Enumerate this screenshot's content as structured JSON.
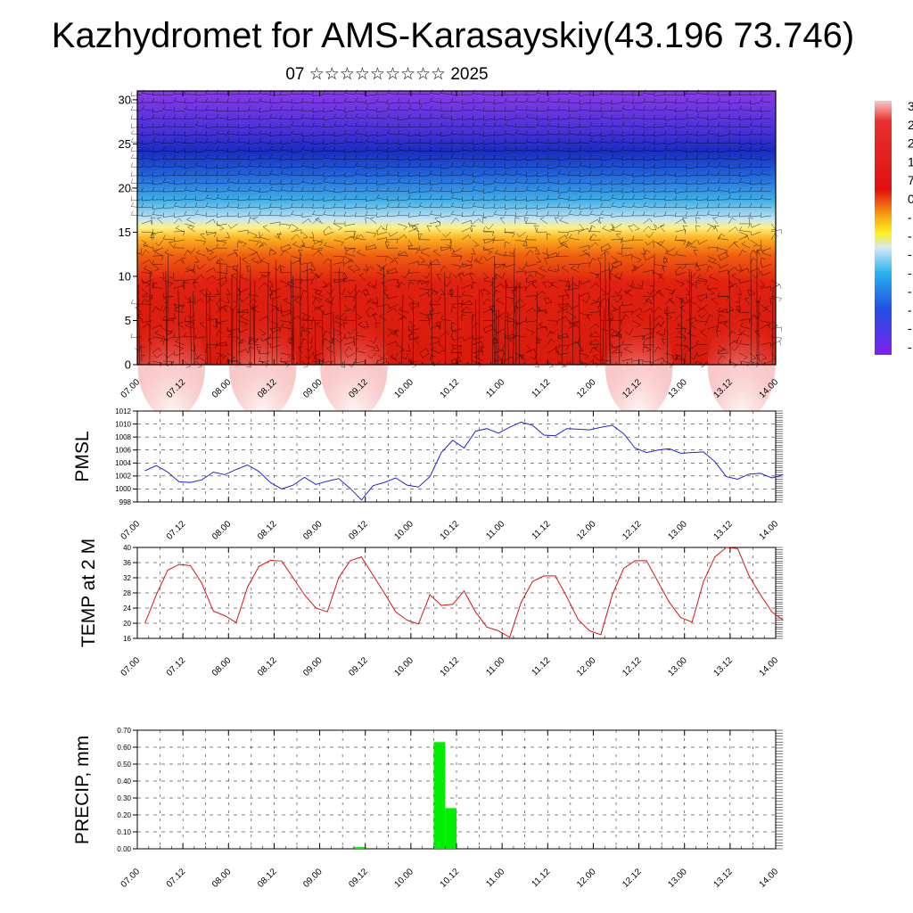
{
  "title": "Kazhydromet for AMS-Karasayskiy(43.196 73.746)",
  "subtitle": "07 ☆☆☆☆☆☆☆☆☆ 2025",
  "time_ticks": [
    "07.00",
    "07.12",
    "08.00",
    "08.12",
    "09.00",
    "09.12",
    "10.00",
    "10.12",
    "11.00",
    "11.12",
    "12.00",
    "12.12",
    "13.00",
    "13.12",
    "14.00"
  ],
  "colors": {
    "pmsl_line": "#2222dd",
    "temp_line": "#dd1111",
    "precip_bar": "#00ee00"
  },
  "chart_data": [
    {
      "type": "heatmap",
      "name": "cross-section",
      "ylim": [
        0,
        31
      ],
      "y_ticks": [
        0,
        5,
        10,
        15,
        20,
        25,
        30
      ],
      "x_ticks": [
        "07.00",
        "07.12",
        "08.00",
        "08.12",
        "09.00",
        "09.12",
        "10.00",
        "10.12",
        "11.00",
        "11.12",
        "12.00",
        "12.12",
        "13.00",
        "13.12",
        "14.00"
      ],
      "colorbar_labels": [
        "3",
        "2",
        "2",
        "1",
        "7",
        "0",
        "-",
        "-",
        "-",
        "-",
        "-",
        "-",
        "-",
        "-"
      ]
    },
    {
      "type": "line",
      "name": "pmsl",
      "ylabel": "PMSL",
      "ylim": [
        998,
        1012
      ],
      "y_ticks": [
        998,
        1000,
        1002,
        1004,
        1006,
        1008,
        1010,
        1012
      ],
      "x": [
        0,
        3,
        6,
        9,
        12,
        15,
        18,
        21,
        24,
        27,
        30,
        33,
        36,
        39,
        42,
        45,
        48,
        51,
        54,
        57,
        60,
        63,
        66,
        69,
        72,
        75,
        78,
        81,
        84,
        87,
        90,
        93,
        96,
        99,
        102,
        105,
        108,
        111,
        114,
        117,
        120,
        123,
        126,
        129,
        132,
        135,
        138,
        141,
        144,
        147,
        150,
        153,
        156,
        159,
        162,
        165,
        168
      ],
      "values": [
        1002.8,
        1003.6,
        1002.6,
        1001.1,
        1001.0,
        1001.4,
        1002.6,
        1002.2,
        1003.0,
        1003.7,
        1002.7,
        1001.0,
        1000.0,
        1000.6,
        1001.8,
        1000.7,
        1001.2,
        1001.6,
        1000.1,
        998.3,
        1000.5,
        1001.0,
        1001.7,
        1000.6,
        1000.3,
        1001.9,
        1005.6,
        1007.5,
        1006.3,
        1008.9,
        1009.3,
        1008.6,
        1009.5,
        1010.3,
        1009.8,
        1008.3,
        1008.2,
        1009.3,
        1009.2,
        1009.1,
        1009.5,
        1009.8,
        1008.5,
        1006.3,
        1005.6,
        1006.0,
        1006.2,
        1005.5,
        1005.6,
        1005.7,
        1004.2,
        1001.9,
        1001.5,
        1002.3,
        1002.4,
        1001.7,
        1002.2
      ]
    },
    {
      "type": "line",
      "name": "temp",
      "ylabel": "TEMP at 2 M",
      "ylim": [
        16,
        40
      ],
      "y_ticks": [
        16,
        20,
        24,
        28,
        32,
        36,
        40
      ],
      "x": [
        0,
        3,
        6,
        9,
        12,
        15,
        18,
        21,
        24,
        27,
        30,
        33,
        36,
        39,
        42,
        45,
        48,
        51,
        54,
        57,
        60,
        63,
        66,
        69,
        72,
        75,
        78,
        81,
        84,
        87,
        90,
        93,
        96,
        99,
        102,
        105,
        108,
        111,
        114,
        117,
        120,
        123,
        126,
        129,
        132,
        135,
        138,
        141,
        144,
        147,
        150,
        153,
        156,
        159,
        162,
        165,
        168
      ],
      "values": [
        20.0,
        27.5,
        34.0,
        35.5,
        35.2,
        30.5,
        23.2,
        22.0,
        20.2,
        29.5,
        35.0,
        36.6,
        36.4,
        32.0,
        27.5,
        24.0,
        23.0,
        32.0,
        36.5,
        37.5,
        32.7,
        28.0,
        23.0,
        20.8,
        19.8,
        27.5,
        24.7,
        25.0,
        28.5,
        23.0,
        19.0,
        18.0,
        16.3,
        25.5,
        31.0,
        32.5,
        32.5,
        27.0,
        21.0,
        18.0,
        17.0,
        27.5,
        34.5,
        36.5,
        36.5,
        31.0,
        25.5,
        21.5,
        20.3,
        31.0,
        37.5,
        40.0,
        39.7,
        32.5,
        27.5,
        23.0,
        20.8
      ]
    },
    {
      "type": "bar",
      "name": "precip",
      "ylabel": "PRECIP, mm",
      "ylim": [
        0,
        0.7
      ],
      "y_ticks": [
        "0.00",
        "0.10",
        "0.20",
        "0.30",
        "0.40",
        "0.50",
        "0.60",
        "0.70"
      ],
      "bars": [
        {
          "x": 57,
          "value": 0.01
        },
        {
          "x": 78,
          "value": 0.63
        },
        {
          "x": 81,
          "value": 0.24
        }
      ]
    }
  ]
}
